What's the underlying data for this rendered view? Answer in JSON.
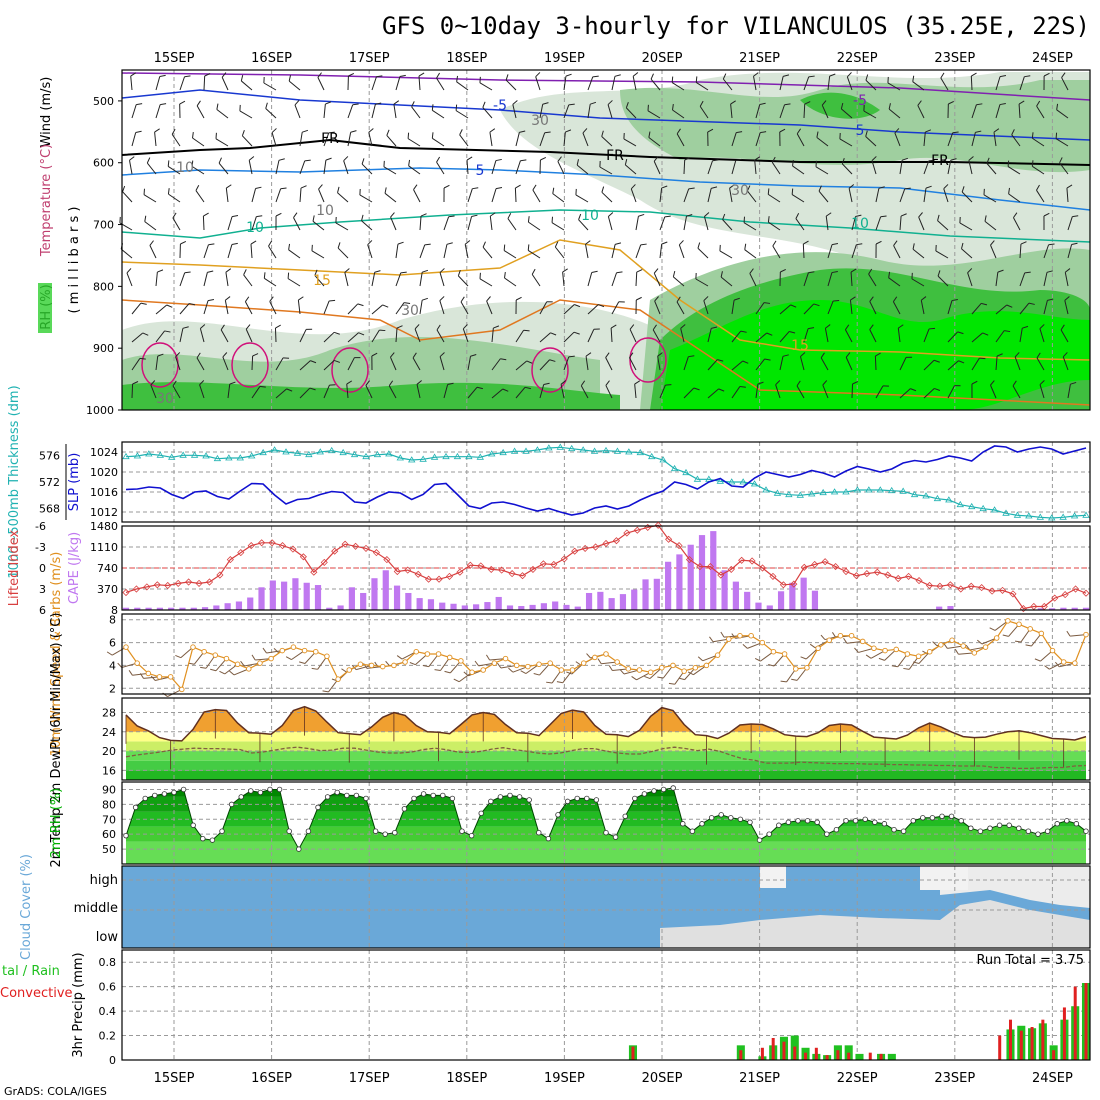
{
  "title": "GFS 0~10day 3-hourly for VILANCULOS (35.25E, 22S)",
  "credit": "GrADS: COLA/IGES",
  "days": [
    "15SEP",
    "16SEP",
    "17SEP",
    "18SEP",
    "19SEP",
    "20SEP",
    "21SEP",
    "22SEP",
    "23SEP",
    "24SEP"
  ],
  "colors": {
    "rh_dark": "#3fbf3f",
    "rh_mid": "#9fcf9f",
    "rh_light": "#d9e6d9",
    "rh_bright": "#00e600",
    "thickness": "#20b2b2",
    "slp": "#1010d0",
    "lifted": "#d84040",
    "cape": "#c078f0",
    "wind": "#e09020",
    "barb": "#7a5a40",
    "temp_fill": "#f0a030",
    "dew": "#806040",
    "rh2m": "#00b000",
    "cloud": "#6aa8d8",
    "cloud_clear": "#f2f2f2",
    "precip_total": "#20c020",
    "precip_conv": "#e02020"
  },
  "chart_data": [
    {
      "type": "heatmap",
      "title": "Upper-air RH, Temperature and Wind",
      "ylabel_parts": [
        "Wind (m/s)",
        "Temperature (°C)",
        "RH (%)"
      ],
      "ylabel_right": "( m i l l i b a r s )",
      "y_ticks": [
        "500",
        "600",
        "700",
        "800",
        "900",
        "1000"
      ],
      "ylim": [
        1000,
        450
      ],
      "contour_labels": [
        "-5",
        "-5",
        "5",
        "5",
        "10",
        "10",
        "10",
        "15",
        "15",
        "FR",
        "FR",
        "FR",
        "30",
        "30",
        "10",
        "10",
        "30",
        "30"
      ]
    },
    {
      "type": "line",
      "ylabel": "1000~500mb Thickness (dm)",
      "ylabel_right": "SLP (mb)",
      "left_ticks": [
        "576",
        "572",
        "568"
      ],
      "right_ticks": [
        "1024",
        "1020",
        "1016",
        "1012"
      ],
      "ylim_left": [
        566,
        578
      ],
      "ylim_right": [
        1010,
        1026
      ],
      "series": [
        {
          "name": "Thickness",
          "axis": "left",
          "values": [
            575.8,
            575.9,
            576.2,
            576.0,
            575.7,
            576.0,
            576.0,
            575.9,
            575.5,
            575.6,
            575.6,
            575.9,
            576.4,
            576.8,
            576.5,
            576.3,
            576.1,
            576.5,
            576.7,
            576.4,
            576.1,
            575.8,
            576.1,
            576.2,
            575.6,
            575.3,
            575.4,
            575.7,
            575.8,
            575.8,
            575.8,
            575.7,
            576.2,
            576.4,
            576.6,
            576.6,
            576.8,
            577.1,
            577.2,
            577.0,
            576.8,
            576.6,
            576.7,
            576.6,
            576.5,
            576.4,
            575.8,
            575.3,
            574.0,
            573.4,
            572.4,
            572.4,
            572.1,
            572.0,
            572.0,
            571.7,
            570.8,
            570.3,
            570.1,
            570.0,
            570.2,
            570.4,
            570.5,
            570.5,
            570.8,
            570.8,
            570.8,
            570.7,
            570.6,
            570.1,
            569.9,
            569.5,
            569.3,
            568.6,
            568.3,
            568.0,
            567.8,
            567.3,
            567.0,
            566.9,
            566.7,
            566.6,
            566.7,
            566.9,
            567.0
          ]
        },
        {
          "name": "SLP",
          "axis": "right",
          "values": [
            1016.5,
            1016.6,
            1017.0,
            1016.8,
            1015.5,
            1014.7,
            1016.0,
            1016.2,
            1015.1,
            1014.6,
            1016.2,
            1017.7,
            1017.6,
            1015.4,
            1013.6,
            1014.5,
            1014.7,
            1015.5,
            1016.1,
            1015.9,
            1014.0,
            1013.8,
            1015.0,
            1016.0,
            1015.8,
            1014.5,
            1015.5,
            1017.5,
            1017.7,
            1015.5,
            1013.2,
            1012.7,
            1013.8,
            1014.0,
            1013.5,
            1012.8,
            1012.2,
            1012.7,
            1012.0,
            1011.4,
            1011.8,
            1012.8,
            1013.2,
            1012.6,
            1013.2,
            1014.4,
            1015.4,
            1016.2,
            1018.0,
            1017.5,
            1016.6,
            1018.0,
            1018.7,
            1017.2,
            1017.0,
            1018.8,
            1020.0,
            1019.5,
            1019.0,
            1019.5,
            1020.3,
            1019.8,
            1019.0,
            1020.2,
            1021.1,
            1020.6,
            1020.0,
            1020.6,
            1021.8,
            1022.3,
            1022.0,
            1022.5,
            1023.2,
            1022.8,
            1022.2,
            1024.0,
            1025.2,
            1025.0,
            1024.0,
            1024.6,
            1025.0,
            1024.6,
            1023.6,
            1024.2,
            1024.8
          ]
        }
      ]
    },
    {
      "type": "bar",
      "ylabel": "Lifted Index",
      "ylabel_right": "CAPE (J/kg)",
      "left_ticks": [
        "-6",
        "-3",
        "0",
        "3",
        "6"
      ],
      "right_ticks": [
        "1480",
        "1110",
        "740",
        "370",
        "8"
      ],
      "ylim_left": [
        6,
        -6
      ],
      "ylim_right": [
        0,
        1480
      ],
      "series": [
        {
          "name": "CAPE",
          "axis": "right",
          "values": [
            40,
            40,
            40,
            40,
            40,
            40,
            40,
            50,
            80,
            120,
            150,
            220,
            400,
            520,
            500,
            560,
            480,
            440,
            40,
            80,
            400,
            300,
            560,
            700,
            430,
            300,
            210,
            190,
            130,
            110,
            80,
            100,
            140,
            230,
            80,
            70,
            90,
            120,
            150,
            90,
            60,
            300,
            320,
            210,
            280,
            360,
            540,
            550,
            850,
            980,
            1150,
            1320,
            1390,
            700,
            500,
            320,
            130,
            80,
            330,
            480,
            570,
            340,
            0,
            0,
            0,
            0,
            0,
            0,
            0,
            0,
            0,
            0,
            60,
            70,
            0,
            0,
            0,
            0,
            0,
            0,
            0,
            30,
            30,
            40,
            40,
            40
          ]
        },
        {
          "name": "Lifted Index",
          "axis": "left",
          "values": [
            3.5,
            3.0,
            2.7,
            2.4,
            2.5,
            2.2,
            2.0,
            2.2,
            2.0,
            1.0,
            -1.2,
            -2.2,
            -3.2,
            -3.6,
            -3.6,
            -3.2,
            -2.7,
            -1.6,
            0.6,
            -0.8,
            -2.4,
            -3.4,
            -3.1,
            -2.8,
            -2.2,
            -1.2,
            0.5,
            0.3,
            0.9,
            1.6,
            1.6,
            1.2,
            0.6,
            -0.4,
            -0.3,
            0.2,
            0.3,
            0.8,
            1.1,
            0.2,
            -0.6,
            -0.5,
            -1.3,
            -2.4,
            -2.8,
            -3.0,
            -3.5,
            -3.9,
            -5.0,
            -5.4,
            -5.8,
            -6.1,
            -4.1,
            -3.2,
            -1.2,
            -0.2,
            -0.2,
            1.0,
            0.2,
            -1.1,
            -1.0,
            0.0,
            1.2,
            2.4,
            2.3,
            -0.1,
            -0.5,
            -0.9,
            -0.2,
            0.5,
            1.1,
            0.8,
            0.6,
            1.0,
            1.5,
            1.2,
            1.8,
            2.5,
            2.6,
            2.4,
            3.0,
            2.6,
            2.8,
            3.3,
            3.2,
            3.7,
            5.8,
            5.5,
            5.5,
            4.3,
            3.8,
            3.0,
            3.6
          ]
        }
      ]
    },
    {
      "type": "line",
      "ylabel": "10m Wind Speed & Barbs (m/s)",
      "y_ticks": [
        "8",
        "6",
        "4",
        "2"
      ],
      "ylim": [
        1.5,
        8.5
      ],
      "series": [
        {
          "name": "Wind speed",
          "values": [
            5.6,
            4.2,
            3.3,
            3.0,
            3.0,
            1.9,
            5.6,
            5.2,
            4.9,
            4.6,
            4.1,
            3.7,
            4.2,
            4.6,
            5.3,
            5.6,
            5.3,
            5.2,
            4.8,
            2.8,
            3.6,
            4.1,
            4.0,
            3.9,
            4.0,
            4.3,
            5.2,
            5.0,
            5.0,
            4.7,
            4.4,
            3.4,
            3.6,
            4.2,
            4.6,
            4.0,
            3.9,
            4.1,
            4.2,
            3.6,
            3.6,
            4.2,
            4.7,
            5.0,
            4.3,
            3.7,
            3.6,
            3.4,
            3.8,
            4.0,
            3.5,
            3.8,
            4.0,
            4.9,
            6.3,
            6.6,
            6.6,
            6.0,
            5.2,
            5.0,
            3.7,
            3.8,
            5.5,
            6.2,
            6.6,
            6.6,
            6.1,
            5.5,
            5.3,
            5.4,
            5.0,
            4.8,
            5.2,
            5.8,
            6.2,
            5.7,
            5.1,
            5.6,
            6.4,
            7.9,
            7.6,
            7.2,
            6.8,
            5.3,
            4.3,
            4.2,
            6.7
          ]
        }
      ]
    },
    {
      "type": "area",
      "ylabel": "2m Temp 2m DewPt (6hr Min/Max) (°C)",
      "y_ticks": [
        "28",
        "24",
        "20",
        "16"
      ],
      "ylim": [
        14,
        31
      ],
      "series": [
        {
          "name": "Temperature",
          "values": [
            27.5,
            25.2,
            24.2,
            22.8,
            22.2,
            22.1,
            24.5,
            28.1,
            28.6,
            28.4,
            25.8,
            23.8,
            23.7,
            23.5,
            25.3,
            28.4,
            29.2,
            28.3,
            26.0,
            23.8,
            23.6,
            23.4,
            25.0,
            27.0,
            28.0,
            27.4,
            25.3,
            24.0,
            23.9,
            23.6,
            25.5,
            27.5,
            28.0,
            27.6,
            25.5,
            23.8,
            23.7,
            23.2,
            25.5,
            27.8,
            28.5,
            28.1,
            25.3,
            23.5,
            23.4,
            23.0,
            24.3,
            27.2,
            29.0,
            28.4,
            25.5,
            23.4,
            23.2,
            22.6,
            23.7,
            25.4,
            25.6,
            25.5,
            24.6,
            23.4,
            23.1,
            23.0,
            23.8,
            25.3,
            25.6,
            25.4,
            24.1,
            22.9,
            22.7,
            22.5,
            23.3,
            24.8,
            25.8,
            25.0,
            23.9,
            23.0,
            22.8,
            22.9,
            23.5,
            24.0,
            24.2,
            23.8,
            23.2,
            22.6,
            22.5,
            22.3,
            23.0
          ]
        },
        {
          "name": "Dew point",
          "values": [
            18.8,
            19.2,
            19.5,
            19.8,
            20.2,
            20.4,
            20.6,
            20.5,
            20.5,
            20.4,
            20.3,
            19.6,
            19.8,
            20.2,
            20.6,
            20.8,
            20.5,
            20.1,
            20.2,
            20.6,
            20.6,
            20.2,
            19.8,
            19.6,
            19.6,
            19.8,
            20.3,
            20.6,
            20.3,
            19.8,
            19.7,
            19.9,
            20.4,
            20.7,
            20.3,
            20.0,
            19.6,
            19.4,
            19.6,
            20.1,
            20.5,
            20.5,
            20.0,
            19.6,
            19.4,
            19.4,
            19.9,
            20.5,
            20.8,
            20.5,
            20.1,
            20.4,
            19.9,
            19.1,
            18.4,
            18.1,
            17.5,
            17.5,
            17.5,
            17.7,
            17.6,
            17.5,
            17.4,
            17.4,
            17.4,
            17.3,
            17.3,
            17.2,
            17.2,
            17.1,
            17.1,
            17.0,
            17.0,
            16.9,
            16.9,
            16.9,
            16.6,
            16.6,
            16.4,
            16.4,
            16.5,
            16.6,
            16.6,
            16.9,
            17.0
          ]
        }
      ]
    },
    {
      "type": "area",
      "ylabel": "2m RH (%)",
      "y_ticks": [
        "90",
        "80",
        "70",
        "60",
        "50"
      ],
      "ylim": [
        40,
        95
      ],
      "series": [
        {
          "name": "2m RH",
          "values": [
            59,
            78,
            84,
            86,
            87,
            88,
            90,
            66,
            57,
            56,
            62,
            80,
            85,
            89,
            88,
            90,
            90,
            62,
            50,
            62,
            78,
            85,
            88,
            86,
            86,
            84,
            62,
            60,
            61,
            77,
            84,
            87,
            86,
            86,
            84,
            62,
            59,
            74,
            82,
            85,
            86,
            85,
            83,
            61,
            57,
            73,
            82,
            84,
            84,
            83,
            61,
            58,
            72,
            84,
            87,
            89,
            90,
            91,
            67,
            62,
            67,
            71,
            73,
            71,
            70,
            68,
            56,
            60,
            66,
            68,
            69,
            69,
            68,
            60,
            63,
            69,
            69,
            70,
            68,
            67,
            63,
            62,
            69,
            71,
            71,
            72,
            72,
            69,
            64,
            62,
            64,
            66,
            66,
            64,
            62,
            60,
            62,
            67,
            69,
            67,
            62
          ]
        }
      ]
    },
    {
      "type": "heatmap",
      "ylabel": "Cloud Cover (%)",
      "y_ticks": [
        "high",
        "middle",
        "low"
      ],
      "ylim": [
        0,
        100
      ]
    },
    {
      "type": "bar",
      "ylabel": "3hr Precip (mm)",
      "ylabel_left": "Total / Rain Convective",
      "annotation": "Run Total = 3.75",
      "y_ticks": [
        "0.8",
        "0.6",
        "0.4",
        "0.2",
        "0"
      ],
      "ylim": [
        0,
        0.9
      ],
      "series": [
        {
          "name": "Total",
          "values": [
            0,
            0,
            0,
            0,
            0,
            0,
            0,
            0,
            0,
            0,
            0,
            0,
            0,
            0,
            0,
            0,
            0,
            0,
            0,
            0,
            0,
            0,
            0,
            0,
            0,
            0,
            0,
            0,
            0,
            0,
            0,
            0,
            0,
            0,
            0,
            0,
            0,
            0,
            0,
            0,
            0,
            0,
            0,
            0,
            0,
            0,
            0,
            0.12,
            0,
            0,
            0,
            0,
            0,
            0,
            0,
            0,
            0,
            0.12,
            0,
            0.03,
            0.12,
            0.19,
            0.2,
            0.1,
            0.05,
            0.04,
            0.12,
            0.12,
            0.05,
            0,
            0.05,
            0.05,
            0,
            0,
            0,
            0,
            0,
            0,
            0,
            0,
            0,
            0,
            0.25,
            0.28,
            0.26,
            0.3,
            0.12,
            0.33,
            0.44,
            0.63
          ]
        },
        {
          "name": "Convective",
          "values": [
            0,
            0,
            0,
            0,
            0,
            0,
            0,
            0,
            0,
            0,
            0,
            0,
            0,
            0,
            0,
            0,
            0,
            0,
            0,
            0,
            0,
            0,
            0,
            0,
            0,
            0,
            0,
            0,
            0,
            0,
            0,
            0,
            0,
            0,
            0,
            0,
            0,
            0,
            0,
            0,
            0,
            0,
            0,
            0,
            0,
            0,
            0,
            0.11,
            0,
            0,
            0,
            0,
            0,
            0,
            0,
            0,
            0,
            0.08,
            0,
            0.1,
            0.18,
            0.15,
            0.11,
            0.06,
            0.1,
            0.04,
            0.08,
            0.06,
            0,
            0.06,
            0.05,
            0,
            0,
            0,
            0,
            0,
            0,
            0,
            0,
            0,
            0,
            0.2,
            0.33,
            0.24,
            0.27,
            0.33,
            0.08,
            0.43,
            0.6,
            0.63
          ]
        }
      ]
    }
  ]
}
